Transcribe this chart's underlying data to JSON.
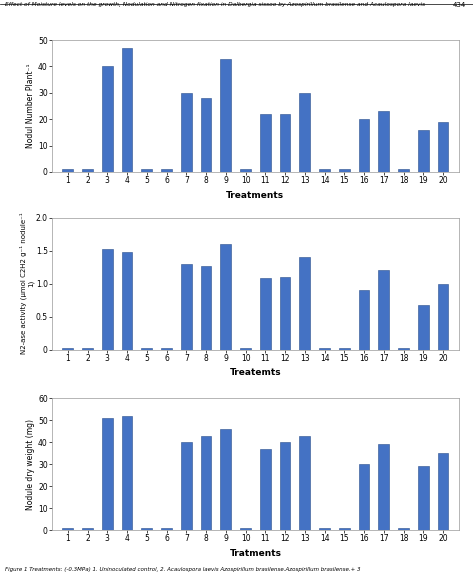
{
  "title": "Effect of Moisture levels on the growth, Nodulation and Nitrogen fixation in Dalbergia sissoo by Azospirillum brasilense and Acaulospora laevis",
  "page_num": "434",
  "treatments": [
    1,
    2,
    3,
    4,
    5,
    6,
    7,
    8,
    9,
    10,
    11,
    12,
    13,
    14,
    15,
    16,
    17,
    18,
    19,
    20
  ],
  "nodule_number": [
    1,
    1,
    40,
    47,
    1,
    1,
    30,
    28,
    43,
    1,
    22,
    22,
    30,
    1,
    1,
    20,
    23,
    1,
    16,
    19
  ],
  "n2ase_activity": [
    0.03,
    0.03,
    1.52,
    1.48,
    0.03,
    0.03,
    1.3,
    1.27,
    1.6,
    0.03,
    1.08,
    1.1,
    1.4,
    0.03,
    0.03,
    0.9,
    1.2,
    0.03,
    0.68,
    1.0
  ],
  "nodule_dry_weight": [
    1,
    1,
    51,
    52,
    1,
    1,
    40,
    43,
    46,
    1,
    37,
    40,
    43,
    1,
    1,
    30,
    39,
    1,
    29,
    35
  ],
  "bar_color": "#4472C4",
  "bar_edge_color": "#2A4E8C",
  "ylabel1": "Nodul Number Plant⁻¹",
  "ylabel2": "N2-ase activity (μmol C2H2 g⁻¹ nodule⁻¹\n1)",
  "ylabel3": "Nodule dry weight (mg)",
  "xlabel1": "Treatments",
  "xlabel2": "Treatemts",
  "xlabel3": "Tratments",
  "ylim1": [
    0,
    50
  ],
  "ylim2": [
    0,
    2
  ],
  "ylim3": [
    0,
    60
  ],
  "yticks1": [
    0,
    10,
    20,
    30,
    40,
    50
  ],
  "yticks2": [
    0,
    0.5,
    1.0,
    1.5,
    2.0
  ],
  "yticks3": [
    0,
    10,
    20,
    30,
    40,
    50,
    60
  ],
  "caption": "Figure 1 Treatments: (-0.3MPa) 1. Uninoculated control, 2. Acaulospora laevis Azospirillum brasilense.Azospirillum brasilense.+ 3"
}
